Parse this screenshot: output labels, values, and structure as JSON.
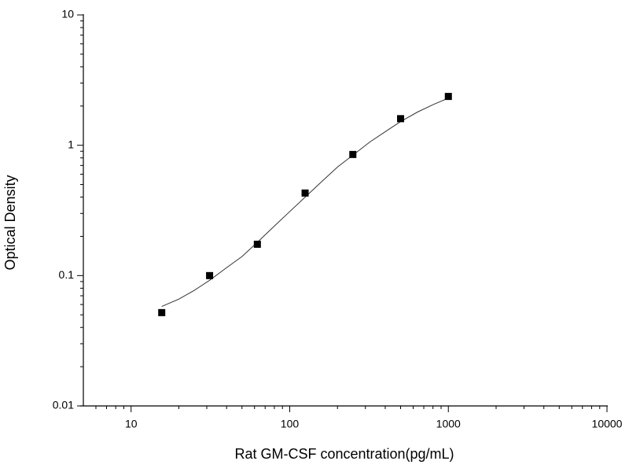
{
  "chart_data": {
    "type": "scatter",
    "x_label": "Rat GM-CSF concentration(pg/mL)",
    "y_label": "Optical Density",
    "xscale": "log",
    "yscale": "log",
    "xlim": [
      5,
      10000
    ],
    "ylim": [
      0.01,
      10
    ],
    "xticks": [
      10,
      100,
      1000,
      10000
    ],
    "yticks": [
      0.01,
      0.1,
      1,
      10
    ],
    "minor_ticks": true,
    "series": [
      {
        "type": "scatter",
        "marker": "square",
        "color": "#000000",
        "x": [
          15.6,
          31.25,
          62.5,
          125,
          250,
          500,
          1000
        ],
        "values": [
          0.052,
          0.1,
          0.174,
          0.43,
          0.85,
          1.6,
          2.37
        ]
      },
      {
        "type": "line",
        "color": "#333333",
        "x": [
          15.6,
          20,
          25,
          31.25,
          40,
          50,
          62.5,
          80,
          100,
          125,
          160,
          200,
          250,
          320,
          400,
          500,
          640,
          800,
          1000
        ],
        "values": [
          0.058,
          0.066,
          0.077,
          0.092,
          0.115,
          0.14,
          0.18,
          0.24,
          0.31,
          0.4,
          0.53,
          0.68,
          0.84,
          1.06,
          1.27,
          1.52,
          1.8,
          2.05,
          2.3
        ]
      }
    ]
  }
}
